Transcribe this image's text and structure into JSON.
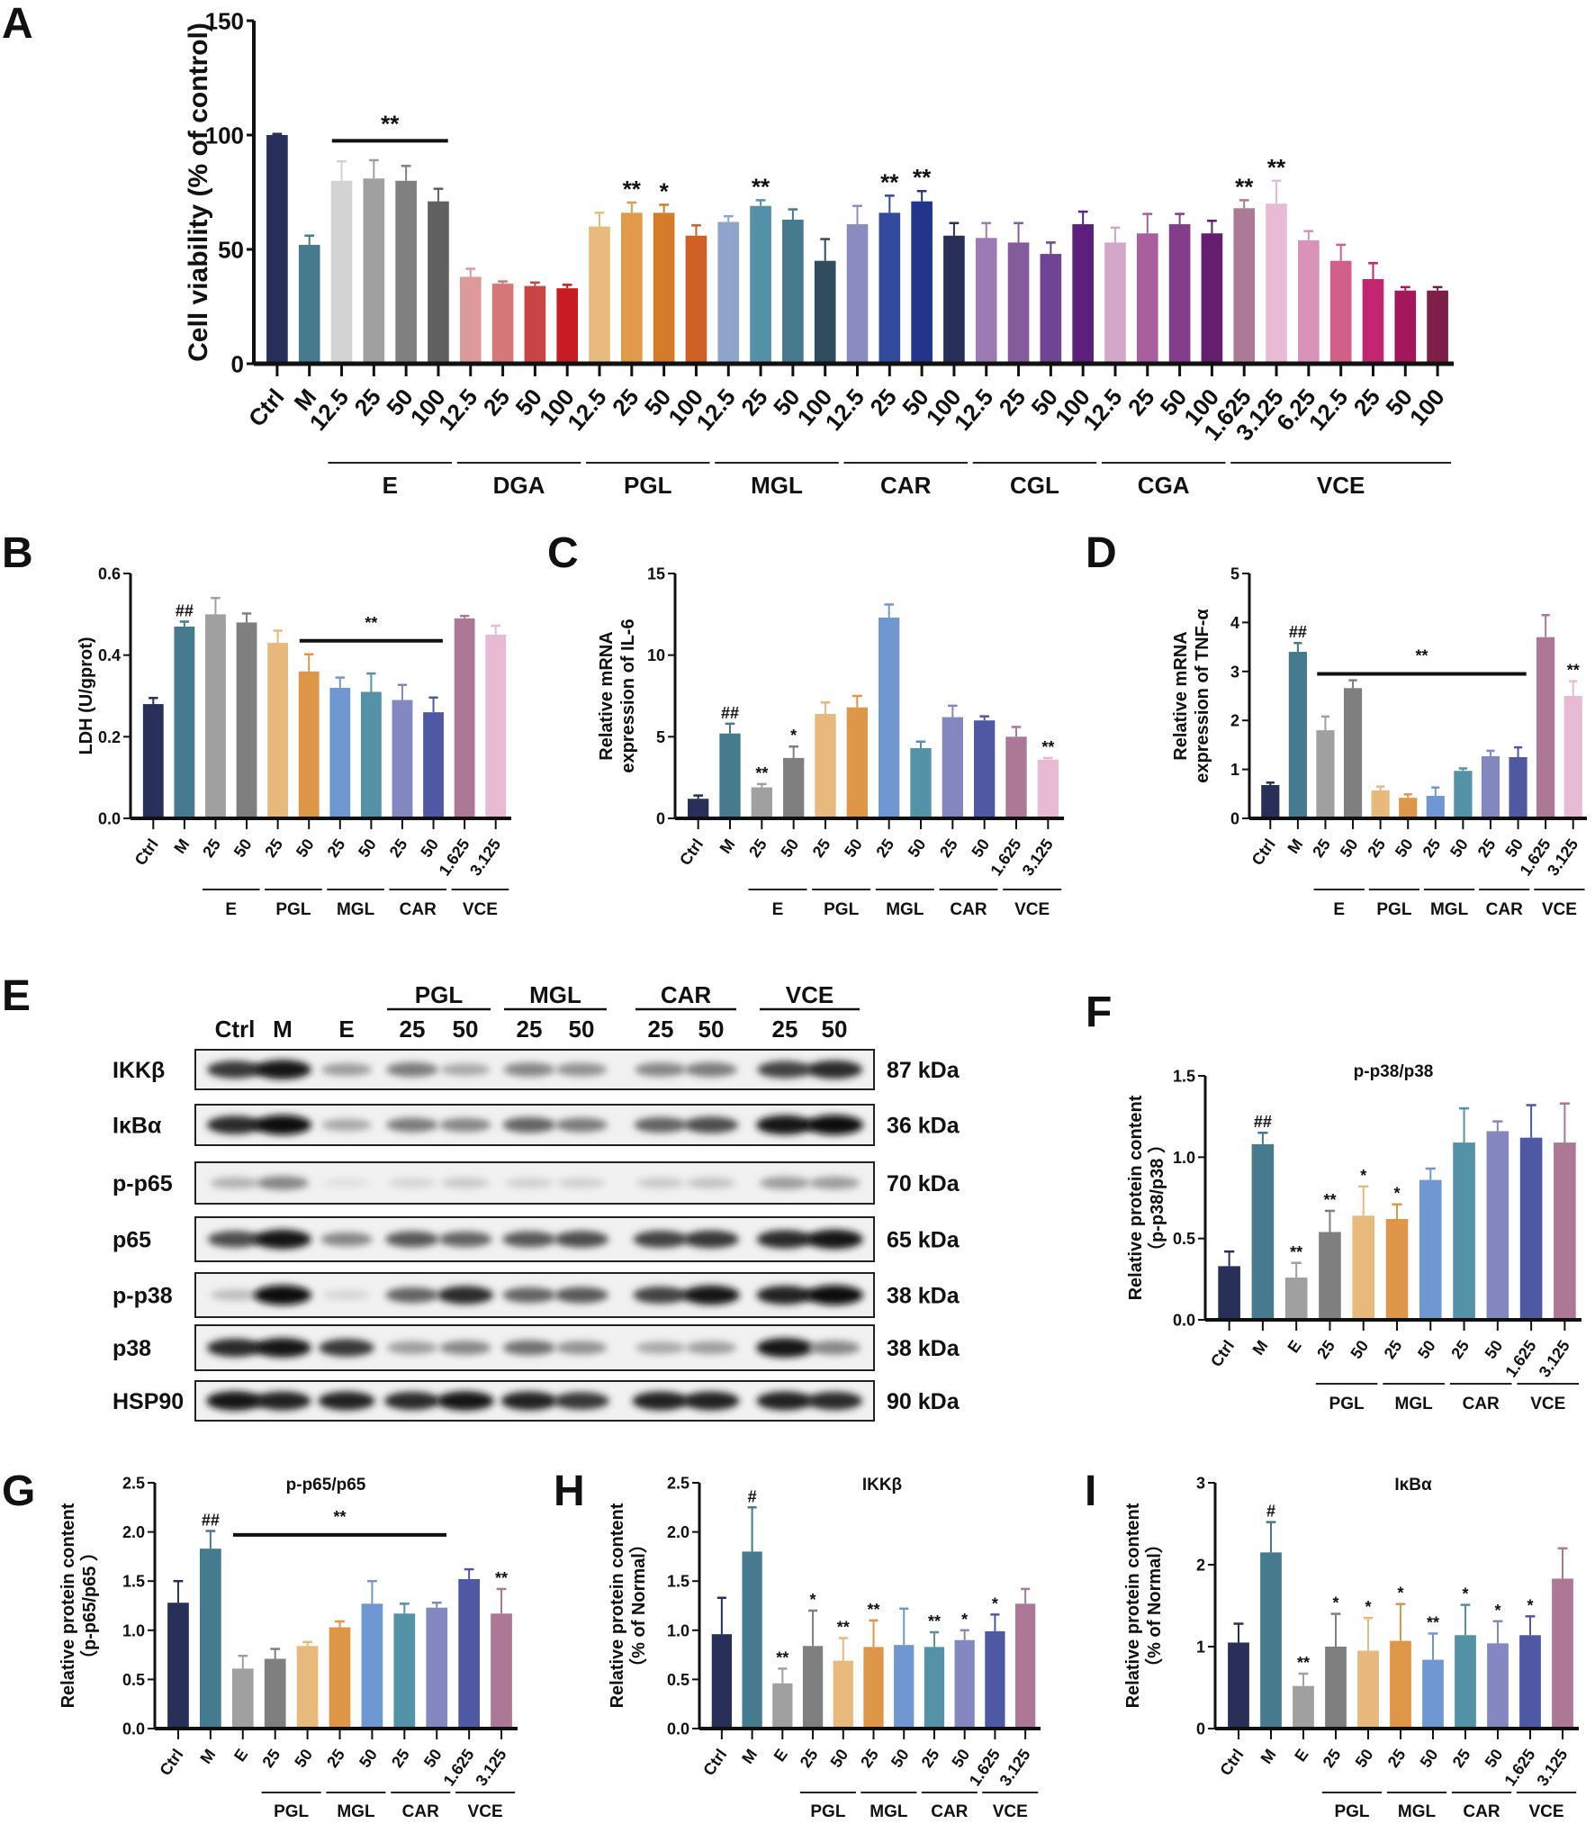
{
  "chart_data": [
    {
      "id": "A",
      "letter": "A",
      "type": "bar",
      "title": "",
      "ylabel": [
        "Cell viability (% of control)"
      ],
      "ylim": [
        0,
        150
      ],
      "yticks": [
        0,
        50,
        100,
        150
      ],
      "ytick_labels": [
        "0",
        "50",
        "100",
        "150"
      ],
      "categories": [
        "Ctrl",
        "M",
        "12.5",
        "25",
        "50",
        "100",
        "12.5",
        "25",
        "50",
        "100",
        "12.5",
        "25",
        "50",
        "100",
        "12.5",
        "25",
        "50",
        "100",
        "12.5",
        "25",
        "50",
        "100",
        "12.5",
        "25",
        "50",
        "100",
        "12.5",
        "25",
        "50",
        "100",
        "1.625",
        "3.125",
        "6.25",
        "12.5",
        "25",
        "50",
        "100"
      ],
      "values": [
        100,
        52,
        80,
        81,
        80,
        71,
        38,
        35,
        34,
        33,
        60,
        66,
        66,
        56,
        62,
        69,
        63,
        45,
        61,
        66,
        71,
        56,
        55,
        53,
        48,
        61,
        53,
        57,
        61,
        57,
        68,
        70,
        54,
        45,
        37,
        32,
        32
      ],
      "errors": [
        0.5,
        4,
        8.5,
        8,
        6.5,
        5.5,
        3.5,
        1,
        1.5,
        1.5,
        6,
        4.5,
        3.5,
        4.5,
        2.5,
        2.5,
        4.5,
        9.5,
        8,
        7.5,
        4.5,
        5.5,
        6.5,
        8.5,
        5,
        5.5,
        6.5,
        8.5,
        4.5,
        5.5,
        3.5,
        10,
        4,
        7,
        7,
        1.5,
        1.5
      ],
      "significance": [
        "",
        "",
        "",
        "",
        "",
        "",
        "",
        "",
        "",
        "",
        "",
        "**",
        "*",
        "",
        "",
        "**",
        "",
        "",
        "",
        "**",
        "**",
        "",
        "",
        "",
        "",
        "",
        "",
        "",
        "",
        "",
        "**",
        "**",
        "",
        "",
        "",
        "",
        ""
      ],
      "groups": [
        {
          "label": "E",
          "start": 2,
          "end": 5
        },
        {
          "label": "DGA",
          "start": 6,
          "end": 9
        },
        {
          "label": "PGL",
          "start": 10,
          "end": 13
        },
        {
          "label": "MGL",
          "start": 14,
          "end": 17
        },
        {
          "label": "CAR",
          "start": 18,
          "end": 21
        },
        {
          "label": "CGL",
          "start": 22,
          "end": 25
        },
        {
          "label": "CGA",
          "start": 26,
          "end": 29
        },
        {
          "label": "VCE",
          "start": 30,
          "end": 36
        }
      ],
      "sig_lines": [
        {
          "start": 2,
          "end": 5,
          "value": 97.5,
          "label": "**"
        }
      ],
      "colors": [
        "#282f5a",
        "#467a8f",
        "#d3d3d3",
        "#a0a0a0",
        "#808080",
        "#606060",
        "#de9a9a",
        "#d57878",
        "#c94545",
        "#c81c24",
        "#e8ba80",
        "#df9a4c",
        "#d57c2a",
        "#cf5f25",
        "#8fa5cc",
        "#5491a8",
        "#467a8f",
        "#2f4d5c",
        "#8a8bc0",
        "#324b9c",
        "#22358a",
        "#283059",
        "#9c7bb4",
        "#845c9c",
        "#6f4494",
        "#5c1f7e",
        "#d2a7ca",
        "#aa5e9e",
        "#843d8c",
        "#651d6f",
        "#ac7a96",
        "#e8bad3",
        "#d992b8",
        "#d06088",
        "#c42572",
        "#a4175c",
        "#7e1f48"
      ]
    },
    {
      "id": "B",
      "letter": "B",
      "type": "bar",
      "title": "",
      "ylabel": [
        "LDH (U/gprot)"
      ],
      "ylim": [
        0,
        0.6
      ],
      "yticks": [
        0,
        0.2,
        0.4,
        0.6
      ],
      "ytick_labels": [
        "0.0",
        "0.2",
        "0.4",
        "0.6"
      ],
      "categories": [
        "Ctrl",
        "M",
        "25",
        "50",
        "25",
        "50",
        "25",
        "50",
        "25",
        "50",
        "1.625",
        "3.125"
      ],
      "values": [
        0.28,
        0.47,
        0.5,
        0.48,
        0.43,
        0.36,
        0.32,
        0.31,
        0.29,
        0.26,
        0.49,
        0.45
      ],
      "errors": [
        0.015,
        0.012,
        0.04,
        0.022,
        0.03,
        0.042,
        0.025,
        0.045,
        0.037,
        0.036,
        0.006,
        0.022
      ],
      "significance": [
        "",
        "##",
        "",
        "",
        "",
        "",
        "",
        "",
        "",
        "",
        "",
        ""
      ],
      "groups": [
        {
          "label": "E",
          "start": 2,
          "end": 3
        },
        {
          "label": "PGL",
          "start": 4,
          "end": 5
        },
        {
          "label": "MGL",
          "start": 6,
          "end": 7
        },
        {
          "label": "CAR",
          "start": 8,
          "end": 9
        },
        {
          "label": "VCE",
          "start": 10,
          "end": 11
        }
      ],
      "sig_lines": [
        {
          "start": 5,
          "end": 9,
          "value": 0.435,
          "label": "**"
        }
      ],
      "colors": [
        "#283059",
        "#457a8f",
        "#a0a0a0",
        "#7f7f7f",
        "#e8b97c",
        "#de9748",
        "#6f98d2",
        "#5492a7",
        "#8488c0",
        "#4f59a3",
        "#ac7895",
        "#e9bad3"
      ]
    },
    {
      "id": "C",
      "letter": "C",
      "type": "bar",
      "title": "",
      "ylabel": [
        "Relative mRNA",
        "expression of IL-6"
      ],
      "ylim": [
        0,
        15
      ],
      "yticks": [
        0,
        5,
        10,
        15
      ],
      "ytick_labels": [
        "0",
        "5",
        "10",
        "15"
      ],
      "categories": [
        "Ctrl",
        "M",
        "25",
        "50",
        "25",
        "50",
        "25",
        "50",
        "25",
        "50",
        "1.625",
        "3.125"
      ],
      "values": [
        1.2,
        5.2,
        1.9,
        3.7,
        6.4,
        6.8,
        12.3,
        4.3,
        6.2,
        6.0,
        5.0,
        3.6
      ],
      "errors": [
        0.2,
        0.6,
        0.2,
        0.7,
        0.7,
        0.7,
        0.8,
        0.4,
        0.7,
        0.25,
        0.6,
        0.1
      ],
      "significance": [
        "",
        "##",
        "**",
        "*",
        "",
        "",
        "",
        "",
        "",
        "",
        "",
        "**"
      ],
      "groups": [
        {
          "label": "E",
          "start": 2,
          "end": 3
        },
        {
          "label": "PGL",
          "start": 4,
          "end": 5
        },
        {
          "label": "MGL",
          "start": 6,
          "end": 7
        },
        {
          "label": "CAR",
          "start": 8,
          "end": 9
        },
        {
          "label": "VCE",
          "start": 10,
          "end": 11
        }
      ],
      "sig_lines": [],
      "colors": [
        "#283059",
        "#457a8f",
        "#a0a0a0",
        "#7f7f7f",
        "#e8b97c",
        "#de9748",
        "#6f98d2",
        "#5492a7",
        "#8488c0",
        "#4f59a3",
        "#ac7895",
        "#e9bad3"
      ]
    },
    {
      "id": "D",
      "letter": "D",
      "type": "bar",
      "title": "",
      "ylabel": [
        "Relative mRNA",
        "expression of TNF-α"
      ],
      "ylim": [
        0,
        5
      ],
      "yticks": [
        0,
        1,
        2,
        3,
        4,
        5
      ],
      "ytick_labels": [
        "0",
        "1",
        "2",
        "3",
        "4",
        "5"
      ],
      "categories": [
        "Ctrl",
        "M",
        "25",
        "50",
        "25",
        "50",
        "25",
        "50",
        "25",
        "50",
        "1.625",
        "3.125"
      ],
      "values": [
        0.68,
        3.4,
        1.8,
        2.66,
        0.57,
        0.42,
        0.46,
        0.97,
        1.27,
        1.25,
        3.7,
        2.5
      ],
      "errors": [
        0.05,
        0.18,
        0.28,
        0.16,
        0.08,
        0.07,
        0.17,
        0.05,
        0.11,
        0.2,
        0.45,
        0.3
      ],
      "significance": [
        "",
        "##",
        "",
        "",
        "",
        "",
        "",
        "",
        "",
        "",
        "",
        "**"
      ],
      "groups": [
        {
          "label": "E",
          "start": 2,
          "end": 3
        },
        {
          "label": "PGL",
          "start": 4,
          "end": 5
        },
        {
          "label": "MGL",
          "start": 6,
          "end": 7
        },
        {
          "label": "CAR",
          "start": 8,
          "end": 9
        },
        {
          "label": "VCE",
          "start": 10,
          "end": 11
        }
      ],
      "sig_lines": [
        {
          "start": 2,
          "end": 9,
          "value": 2.95,
          "label": "**"
        }
      ],
      "colors": [
        "#283059",
        "#457a8f",
        "#a0a0a0",
        "#7f7f7f",
        "#e8b97c",
        "#de9748",
        "#6f98d2",
        "#5492a7",
        "#8488c0",
        "#4f59a3",
        "#ac7895",
        "#e9bad3"
      ]
    },
    {
      "id": "F",
      "letter": "F",
      "type": "bar",
      "title": "p-p38/p38",
      "ylabel": [
        "Relative protein content",
        "（p-p38/p38 ）"
      ],
      "ylim": [
        0,
        1.5
      ],
      "yticks": [
        0,
        0.5,
        1.0,
        1.5
      ],
      "ytick_labels": [
        "0.0",
        "0.5",
        "1.0",
        "1.5"
      ],
      "categories": [
        "Ctrl",
        "M",
        "E",
        "25",
        "50",
        "25",
        "50",
        "25",
        "50",
        "1.625",
        "3.125"
      ],
      "values": [
        0.33,
        1.08,
        0.26,
        0.54,
        0.64,
        0.62,
        0.86,
        1.09,
        1.16,
        1.12,
        1.09
      ],
      "errors": [
        0.09,
        0.07,
        0.09,
        0.13,
        0.18,
        0.09,
        0.07,
        0.21,
        0.06,
        0.2,
        0.24
      ],
      "significance": [
        "",
        "##",
        "**",
        "**",
        "*",
        "*",
        "",
        "",
        "",
        "",
        ""
      ],
      "groups": [
        {
          "label": "PGL",
          "start": 3,
          "end": 4
        },
        {
          "label": "MGL",
          "start": 5,
          "end": 6
        },
        {
          "label": "CAR",
          "start": 7,
          "end": 8
        },
        {
          "label": "VCE",
          "start": 9,
          "end": 10
        }
      ],
      "sig_lines": [],
      "colors": [
        "#283059",
        "#457a8f",
        "#a0a0a0",
        "#7f7f7f",
        "#e8b97c",
        "#de9748",
        "#6f98d2",
        "#5492a7",
        "#8488c0",
        "#4f59a3",
        "#ac7895"
      ]
    },
    {
      "id": "G",
      "letter": "G",
      "type": "bar",
      "title": "p-p65/p65",
      "ylabel": [
        "Relative protein content",
        "（p-p65/p65 ）"
      ],
      "ylim": [
        0,
        2.5
      ],
      "yticks": [
        0,
        0.5,
        1.0,
        1.5,
        2.0,
        2.5
      ],
      "ytick_labels": [
        "0.0",
        "0.5",
        "1.0",
        "1.5",
        "2.0",
        "2.5"
      ],
      "categories": [
        "Ctrl",
        "M",
        "E",
        "25",
        "50",
        "25",
        "50",
        "25",
        "50",
        "1.625",
        "3.125"
      ],
      "values": [
        1.28,
        1.83,
        0.61,
        0.71,
        0.84,
        1.03,
        1.27,
        1.17,
        1.23,
        1.52,
        1.17
      ],
      "errors": [
        0.22,
        0.18,
        0.13,
        0.1,
        0.04,
        0.06,
        0.23,
        0.1,
        0.05,
        0.1,
        0.25
      ],
      "significance": [
        "",
        "##",
        "",
        "",
        "",
        "",
        "",
        "",
        "",
        "",
        "**"
      ],
      "groups": [
        {
          "label": "PGL",
          "start": 3,
          "end": 4
        },
        {
          "label": "MGL",
          "start": 5,
          "end": 6
        },
        {
          "label": "CAR",
          "start": 7,
          "end": 8
        },
        {
          "label": "VCE",
          "start": 9,
          "end": 10
        }
      ],
      "sig_lines": [
        {
          "start": 2,
          "end": 8,
          "value": 1.97,
          "label": "**"
        }
      ],
      "colors": [
        "#283059",
        "#457a8f",
        "#a0a0a0",
        "#7f7f7f",
        "#e8b97c",
        "#de9748",
        "#6f98d2",
        "#5492a7",
        "#8488c0",
        "#4f59a3",
        "#ac7895"
      ]
    },
    {
      "id": "H",
      "letter": "H",
      "type": "bar",
      "title": "IKKβ",
      "ylabel": [
        "Relative protein content",
        "（% of Normal）"
      ],
      "ylim": [
        0,
        2.5
      ],
      "yticks": [
        0,
        0.5,
        1.0,
        1.5,
        2.0,
        2.5
      ],
      "ytick_labels": [
        "0.0",
        "0.5",
        "1.0",
        "1.5",
        "2.0",
        "2.5"
      ],
      "categories": [
        "Ctrl",
        "M",
        "E",
        "25",
        "50",
        "25",
        "50",
        "25",
        "50",
        "1.625",
        "3.125"
      ],
      "values": [
        0.96,
        1.8,
        0.46,
        0.84,
        0.69,
        0.83,
        0.85,
        0.83,
        0.9,
        0.99,
        1.27
      ],
      "errors": [
        0.37,
        0.45,
        0.15,
        0.36,
        0.23,
        0.27,
        0.37,
        0.15,
        0.1,
        0.17,
        0.15
      ],
      "significance": [
        "",
        "#",
        "**",
        "*",
        "**",
        "**",
        "",
        "**",
        "*",
        "*",
        ""
      ],
      "groups": [
        {
          "label": "PGL",
          "start": 3,
          "end": 4
        },
        {
          "label": "MGL",
          "start": 5,
          "end": 6
        },
        {
          "label": "CAR",
          "start": 7,
          "end": 8
        },
        {
          "label": "VCE",
          "start": 9,
          "end": 10
        }
      ],
      "sig_lines": [],
      "colors": [
        "#283059",
        "#457a8f",
        "#a0a0a0",
        "#7f7f7f",
        "#e8b97c",
        "#de9748",
        "#6f98d2",
        "#5492a7",
        "#8488c0",
        "#4f59a3",
        "#ac7895"
      ]
    },
    {
      "id": "I",
      "letter": "I",
      "type": "bar",
      "title": "IκBα",
      "ylabel": [
        "Relative protein content",
        "（% of Normal）"
      ],
      "ylim": [
        0,
        3
      ],
      "yticks": [
        0,
        1,
        2,
        3
      ],
      "ytick_labels": [
        "0",
        "1",
        "2",
        "3"
      ],
      "categories": [
        "Ctrl",
        "M",
        "E",
        "25",
        "50",
        "25",
        "50",
        "25",
        "50",
        "1.625",
        "3.125"
      ],
      "values": [
        1.05,
        2.15,
        0.52,
        1.0,
        0.95,
        1.07,
        0.84,
        1.14,
        1.04,
        1.14,
        1.83
      ],
      "errors": [
        0.23,
        0.37,
        0.15,
        0.4,
        0.4,
        0.45,
        0.32,
        0.37,
        0.27,
        0.23,
        0.37
      ],
      "significance": [
        "",
        "#",
        "**",
        "*",
        "*",
        "*",
        "**",
        "*",
        "*",
        "*",
        ""
      ],
      "groups": [
        {
          "label": "PGL",
          "start": 3,
          "end": 4
        },
        {
          "label": "MGL",
          "start": 5,
          "end": 6
        },
        {
          "label": "CAR",
          "start": 7,
          "end": 8
        },
        {
          "label": "VCE",
          "start": 9,
          "end": 10
        }
      ],
      "sig_lines": [],
      "colors": [
        "#283059",
        "#457a8f",
        "#a0a0a0",
        "#7f7f7f",
        "#e8b97c",
        "#de9748",
        "#6f98d2",
        "#5492a7",
        "#8488c0",
        "#4f59a3",
        "#ac7895"
      ]
    }
  ],
  "western_blot": {
    "letter": "E",
    "lane_labels": [
      "Ctrl",
      "M",
      "E",
      "25",
      "50",
      "25",
      "50",
      "25",
      "50",
      "25",
      "50"
    ],
    "lane_groups": [
      {
        "label": "PGL",
        "start": 3,
        "end": 4
      },
      {
        "label": "MGL",
        "start": 5,
        "end": 6
      },
      {
        "label": "CAR",
        "start": 7,
        "end": 8
      },
      {
        "label": "VCE",
        "start": 9,
        "end": 10
      }
    ],
    "rows": [
      {
        "protein": "IKKβ",
        "size": "87 kDa",
        "band_intensity": [
          0.8,
          0.95,
          0.35,
          0.5,
          0.3,
          0.45,
          0.4,
          0.45,
          0.5,
          0.75,
          0.85
        ]
      },
      {
        "protein": "IκBα",
        "size": "36 kDa",
        "band_intensity": [
          0.85,
          1,
          0.3,
          0.5,
          0.45,
          0.6,
          0.5,
          0.6,
          0.7,
          0.95,
          1
        ]
      },
      {
        "protein": "p-p65",
        "size": "70 kDa",
        "band_intensity": [
          0.25,
          0.45,
          0.05,
          0.1,
          0.15,
          0.12,
          0.12,
          0.15,
          0.18,
          0.35,
          0.35
        ]
      },
      {
        "protein": "p65",
        "size": "65 kDa",
        "band_intensity": [
          0.7,
          0.95,
          0.45,
          0.65,
          0.6,
          0.65,
          0.7,
          0.75,
          0.8,
          0.85,
          0.95
        ]
      },
      {
        "protein": "p-p38",
        "size": "38 kDa",
        "band_intensity": [
          0.2,
          1,
          0.1,
          0.6,
          0.85,
          0.6,
          0.65,
          0.75,
          0.95,
          0.9,
          1
        ]
      },
      {
        "protein": "p38",
        "size": "38 kDa",
        "band_intensity": [
          0.85,
          0.95,
          0.8,
          0.35,
          0.45,
          0.55,
          0.4,
          0.3,
          0.35,
          0.95,
          0.45
        ]
      },
      {
        "protein": "HSP90",
        "size": "90 kDa",
        "band_intensity": [
          0.95,
          0.9,
          0.9,
          0.85,
          0.95,
          0.9,
          0.8,
          0.9,
          0.9,
          0.9,
          0.85
        ]
      }
    ]
  }
}
